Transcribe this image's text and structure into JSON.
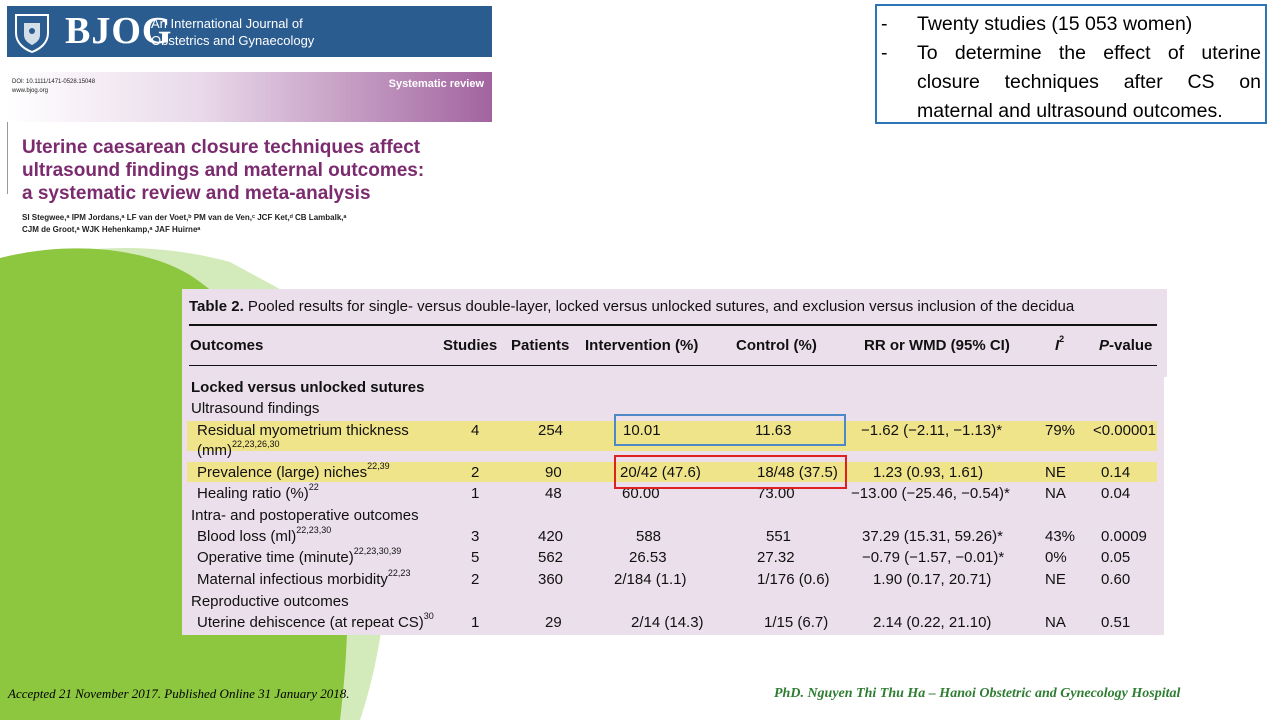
{
  "journal": {
    "logo": "BJOG",
    "subtitle_line1": "An International Journal of",
    "subtitle_line2": "Obstetrics and Gynaecology",
    "doi": "DOI: 10.1111/1471-0528.15048",
    "website": "www.bjog.org",
    "article_type": "Systematic review"
  },
  "paper": {
    "title_line1": "Uterine caesarean closure techniques affect",
    "title_line2": "ultrasound findings and maternal outcomes:",
    "title_line3": "a systematic review and meta-analysis",
    "authors_line1": "SI Stegwee,ᵃ IPM Jordans,ᵃ LF van der Voet,ᵇ PM van de Ven,ᶜ JCF Ket,ᵈ CB Lambalk,ᵃ",
    "authors_line2": "CJM de Groot,ᵃ WJK Hehenkamp,ᵃ JAF Huirneᵃ"
  },
  "info_box": {
    "item1_dash": "-",
    "item1": "Twenty studies (15 053 women)",
    "item2_dash": "-",
    "item2": "To determine the effect of uterine closure techniques after CS on maternal and ultrasound outcomes."
  },
  "table": {
    "caption_label": "Table 2.",
    "caption_text": "Pooled results for single- versus double-layer, locked versus unlocked sutures, and exclusion versus inclusion of the decidua",
    "headers": {
      "outcomes": "Outcomes",
      "studies": "Studies",
      "patients": "Patients",
      "intervention": "Intervention (%)",
      "control": "Control (%)",
      "rr": "RR or WMD (95% CI)",
      "i2_letter": "I",
      "i2_sup": "2",
      "p_prefix": "P",
      "p_suffix": "-value"
    },
    "section_locked": "Locked versus unlocked sutures",
    "group_ultrasound": "Ultrasound findings",
    "group_intra": "Intra- and postoperative outcomes",
    "group_reproductive": "Reproductive outcomes",
    "rows": [
      {
        "outcome": "Residual myometrium thickness",
        "outcome2": "(mm)",
        "refs": "22,23,26,30",
        "studies": "4",
        "patients": "254",
        "intervention": "10.01",
        "control": "11.63",
        "rr": "−1.62 (−2.11, −1.13)*",
        "i2": "79%",
        "p": "<0.00001"
      },
      {
        "outcome": "Prevalence (large) niches",
        "refs": "22,39",
        "studies": "2",
        "patients": "90",
        "intervention": "20/42 (47.6)",
        "control": "18/48 (37.5)",
        "rr": "1.23 (0.93, 1.61)",
        "i2": "NE",
        "p": "0.14"
      },
      {
        "outcome": "Healing ratio (%)",
        "refs": "22",
        "studies": "1",
        "patients": "48",
        "intervention": "60.00",
        "control": "73.00",
        "rr": "−13.00 (−25.46, −0.54)*",
        "i2": "NA",
        "p": "0.04"
      },
      {
        "outcome": "Blood loss (ml)",
        "refs": "22,23,30",
        "studies": "3",
        "patients": "420",
        "intervention": "588",
        "control": "551",
        "rr": "37.29 (15.31, 59.26)*",
        "i2": "43%",
        "p": "0.0009"
      },
      {
        "outcome": "Operative time (minute)",
        "refs": "22,23,30,39",
        "studies": "5",
        "patients": "562",
        "intervention": "26.53",
        "control": "27.32",
        "rr": "−0.79 (−1.57, −0.01)*",
        "i2": "0%",
        "p": "0.05"
      },
      {
        "outcome": "Maternal infectious morbidity",
        "refs": "22,23",
        "studies": "2",
        "patients": "360",
        "intervention": "2/184 (1.1)",
        "control": "1/176 (0.6)",
        "rr": "1.90 (0.17, 20.71)",
        "i2": "NE",
        "p": "0.60"
      },
      {
        "outcome": "Uterine dehiscence (at repeat CS)",
        "refs": "30",
        "studies": "1",
        "patients": "29",
        "intervention": "2/14 (14.3)",
        "control": "1/15 (6.7)",
        "rr": "2.14 (0.22, 21.10)",
        "i2": "NA",
        "p": "0.51"
      }
    ]
  },
  "footer": {
    "left": "Accepted 21 November 2017. Published Online 31 January 2018.",
    "right": "PhD. Nguyen Thi Thu Ha – Hanoi Obstetric and Gynecology Hospital"
  },
  "colors": {
    "accent_green": "#8dc63f",
    "title_purple": "#7b2b6e",
    "table_bg": "#ebdfeb",
    "highlight": "#f0e48a",
    "box_blue": "#2e75b6",
    "box_red": "#e02020"
  }
}
